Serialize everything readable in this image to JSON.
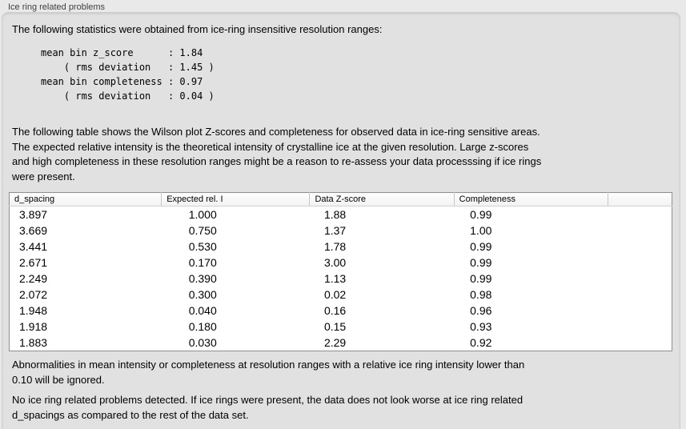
{
  "panel": {
    "title": "Ice ring related problems"
  },
  "intro": "The following statistics were obtained from ice-ring insensitive resolution ranges:",
  "stats_lines": [
    "mean bin z_score      : 1.84",
    "    ( rms deviation   : 1.45 )",
    "mean bin completeness : 0.97",
    "    ( rms deviation   : 0.04 )"
  ],
  "description_lines": [
    "The following table shows the Wilson plot Z-scores and completeness for observed data in ice-ring sensitive areas.",
    "The expected relative intensity is the theoretical intensity of crystalline ice at the given resolution. Large z-scores",
    "and high completeness in these resolution ranges might be a reason to re-assess your data processsing if ice rings",
    "were present."
  ],
  "table": {
    "columns": [
      "d_spacing",
      "Expected rel. I",
      "Data Z-score",
      "Completeness"
    ],
    "rows": [
      [
        "3.897",
        "1.000",
        "1.88",
        "0.99"
      ],
      [
        "3.669",
        "0.750",
        "1.37",
        "1.00"
      ],
      [
        "3.441",
        "0.530",
        "1.78",
        "0.99"
      ],
      [
        "2.671",
        "0.170",
        "3.00",
        "0.99"
      ],
      [
        "2.249",
        "0.390",
        "1.13",
        "0.99"
      ],
      [
        "2.072",
        "0.300",
        "0.02",
        "0.98"
      ],
      [
        "1.948",
        "0.040",
        "0.16",
        "0.96"
      ],
      [
        "1.918",
        "0.180",
        "0.15",
        "0.93"
      ],
      [
        "1.883",
        "0.030",
        "2.29",
        "0.92"
      ]
    ]
  },
  "ignore_note_lines": [
    "Abnormalities in mean intensity or completeness at resolution ranges with a relative ice ring intensity lower than",
    "0.10 will be ignored."
  ],
  "conclusion_lines": [
    "No ice ring related problems detected. If ice rings were present, the data does not look worse at ice ring related",
    "d_spacings as compared to the rest of the data set."
  ]
}
